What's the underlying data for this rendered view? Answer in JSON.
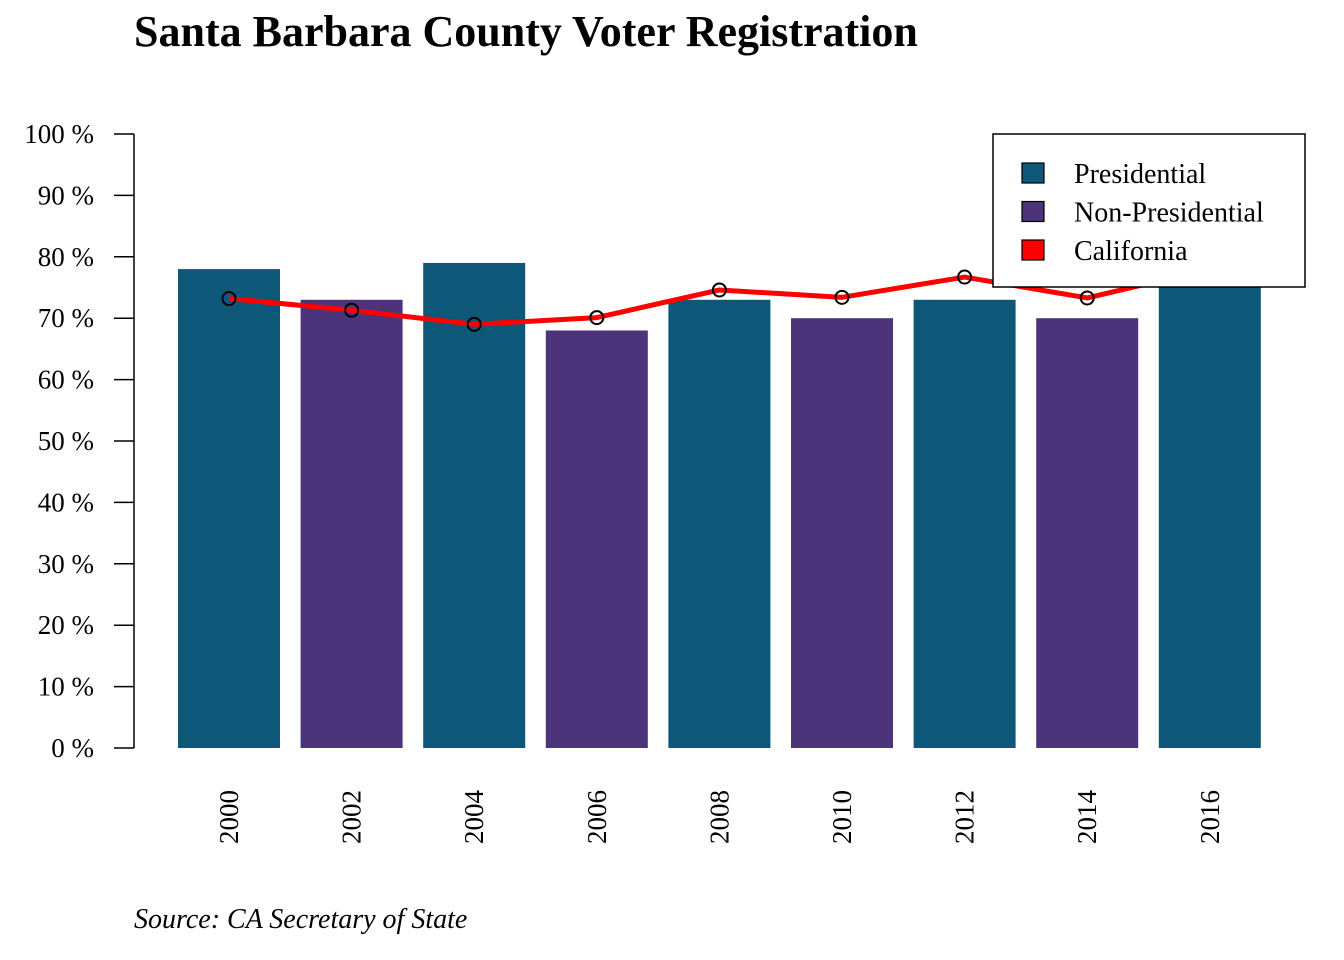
{
  "chart_data": {
    "type": "bar",
    "title": "Santa Barbara County Voter Registration",
    "source": "Source: CA Secretary of State",
    "xlabel": "",
    "ylabel": "",
    "categories": [
      "2000",
      "2002",
      "2004",
      "2006",
      "2008",
      "2010",
      "2012",
      "2014",
      "2016"
    ],
    "series": [
      {
        "name": "Presidential / Non-Presidential",
        "type": "bar",
        "values": [
          78,
          73,
          79,
          68,
          73,
          70,
          73,
          70,
          75
        ],
        "kinds": [
          "Presidential",
          "Non-Presidential",
          "Presidential",
          "Non-Presidential",
          "Presidential",
          "Non-Presidential",
          "Presidential",
          "Non-Presidential",
          "Presidential"
        ]
      },
      {
        "name": "California",
        "type": "line",
        "values": [
          73.2,
          71.3,
          69.0,
          70.1,
          74.6,
          73.4,
          76.7,
          73.3,
          78.0
        ]
      }
    ],
    "ylim": [
      0,
      100
    ],
    "yticks": [
      0,
      10,
      20,
      30,
      40,
      50,
      60,
      70,
      80,
      90,
      100
    ],
    "ytick_labels": [
      "0 %",
      "10 %",
      "20 %",
      "30 %",
      "40 %",
      "50 %",
      "60 %",
      "70 %",
      "80 %",
      "90 %",
      "100 %"
    ],
    "legend": {
      "position": "top-right",
      "entries": [
        {
          "label": "Presidential",
          "color": "#0d5878"
        },
        {
          "label": "Non-Presidential",
          "color": "#4b347a"
        },
        {
          "label": "California",
          "color": "#ff0000"
        }
      ]
    },
    "colors": {
      "Presidential": "#0d5878",
      "Non-Presidential": "#4b347a",
      "California": "#ff0000"
    },
    "grid": false
  }
}
